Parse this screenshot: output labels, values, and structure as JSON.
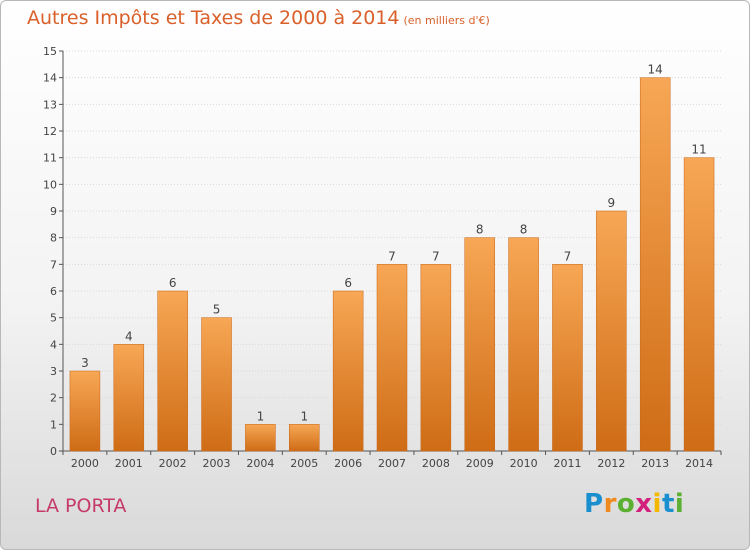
{
  "title": "Autres Impôts et Taxes de 2000 à 2014",
  "subtitle": "(en milliers d'€)",
  "commune": "LA PORTA",
  "logo": {
    "letters": [
      "P",
      "r",
      "o",
      "x",
      "i",
      "t",
      "i"
    ],
    "colors": [
      "#1a8fd0",
      "#f08a1e",
      "#5bb031",
      "#d3207d",
      "#f5b800",
      "#1a8fd0",
      "#5bb031"
    ]
  },
  "colors": {
    "bar": "#f08a2e",
    "bar_light": "#f7a75a",
    "bar_dark": "#d06a18",
    "title": "#d9602a",
    "commune": "#c63a6a"
  },
  "chart_data": {
    "type": "bar",
    "categories": [
      "2000",
      "2001",
      "2002",
      "2003",
      "2004",
      "2005",
      "2006",
      "2007",
      "2008",
      "2009",
      "2010",
      "2011",
      "2012",
      "2013",
      "2014"
    ],
    "values": [
      3,
      4,
      6,
      5,
      1,
      1,
      6,
      7,
      7,
      8,
      8,
      7,
      9,
      14,
      11
    ],
    "data_labels": [
      "3",
      "4",
      "6",
      "5",
      "1",
      "1",
      "6",
      "7",
      "7",
      "8",
      "8",
      "7",
      "9",
      "14",
      "11"
    ],
    "ylim": [
      0,
      15
    ],
    "yticks": [
      "0",
      "1",
      "2",
      "3",
      "4",
      "5",
      "6",
      "7",
      "8",
      "9",
      "10",
      "11",
      "12",
      "13",
      "14",
      "15"
    ],
    "grid": true,
    "title": "Autres Impôts et Taxes de 2000 à 2014",
    "xlabel": "",
    "ylabel": ""
  }
}
